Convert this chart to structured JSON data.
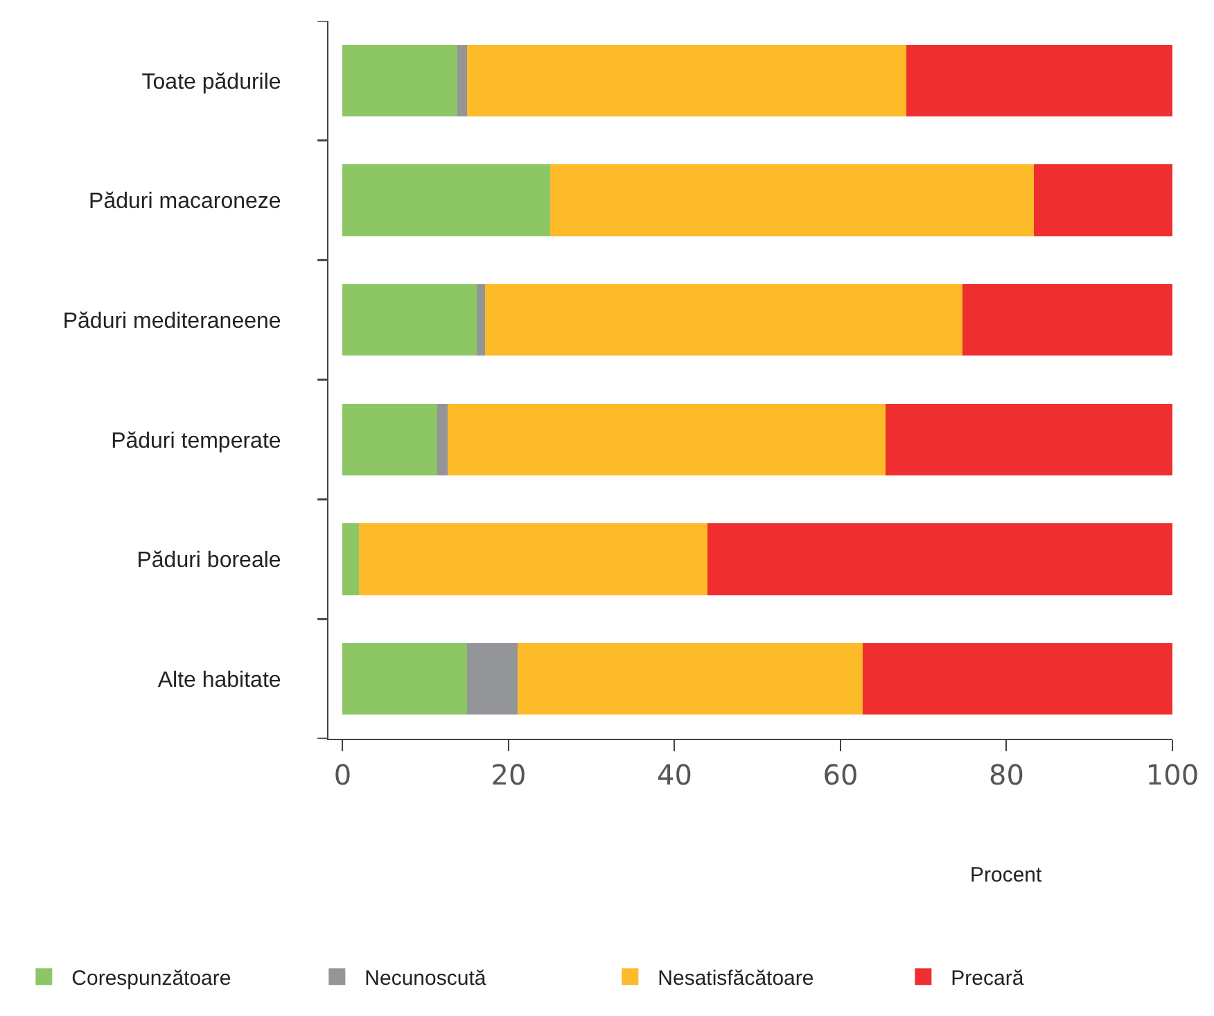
{
  "chart_data": {
    "type": "bar",
    "orientation": "horizontal",
    "stacked": true,
    "xlabel": "Procent",
    "categories": [
      "Toate pădurile",
      "Păduri macaroneze",
      "Păduri mediteraneene",
      "Păduri temperate",
      "Păduri boreale",
      "Alte habitate"
    ],
    "series": [
      {
        "name": "Corespunzătoare",
        "color": "#8cc665",
        "values": [
          13.8,
          25.0,
          16.2,
          11.4,
          2.0,
          15.0
        ]
      },
      {
        "name": "Necunoscută",
        "color": "#939598",
        "values": [
          1.2,
          0,
          1.0,
          1.3,
          0,
          6.1
        ]
      },
      {
        "name": "Nesatisfăcătoare",
        "color": "#fdbb2a",
        "values": [
          52.9,
          58.3,
          57.5,
          52.7,
          42.0,
          41.6
        ]
      },
      {
        "name": "Precară",
        "color": "#ee2e2f",
        "values": [
          32.1,
          16.7,
          25.3,
          34.6,
          56.0,
          37.3
        ]
      }
    ],
    "xlim": [
      -1.7,
      100
    ],
    "xticks": [
      0,
      20,
      40,
      60,
      80,
      100
    ],
    "legend": "bottom"
  }
}
